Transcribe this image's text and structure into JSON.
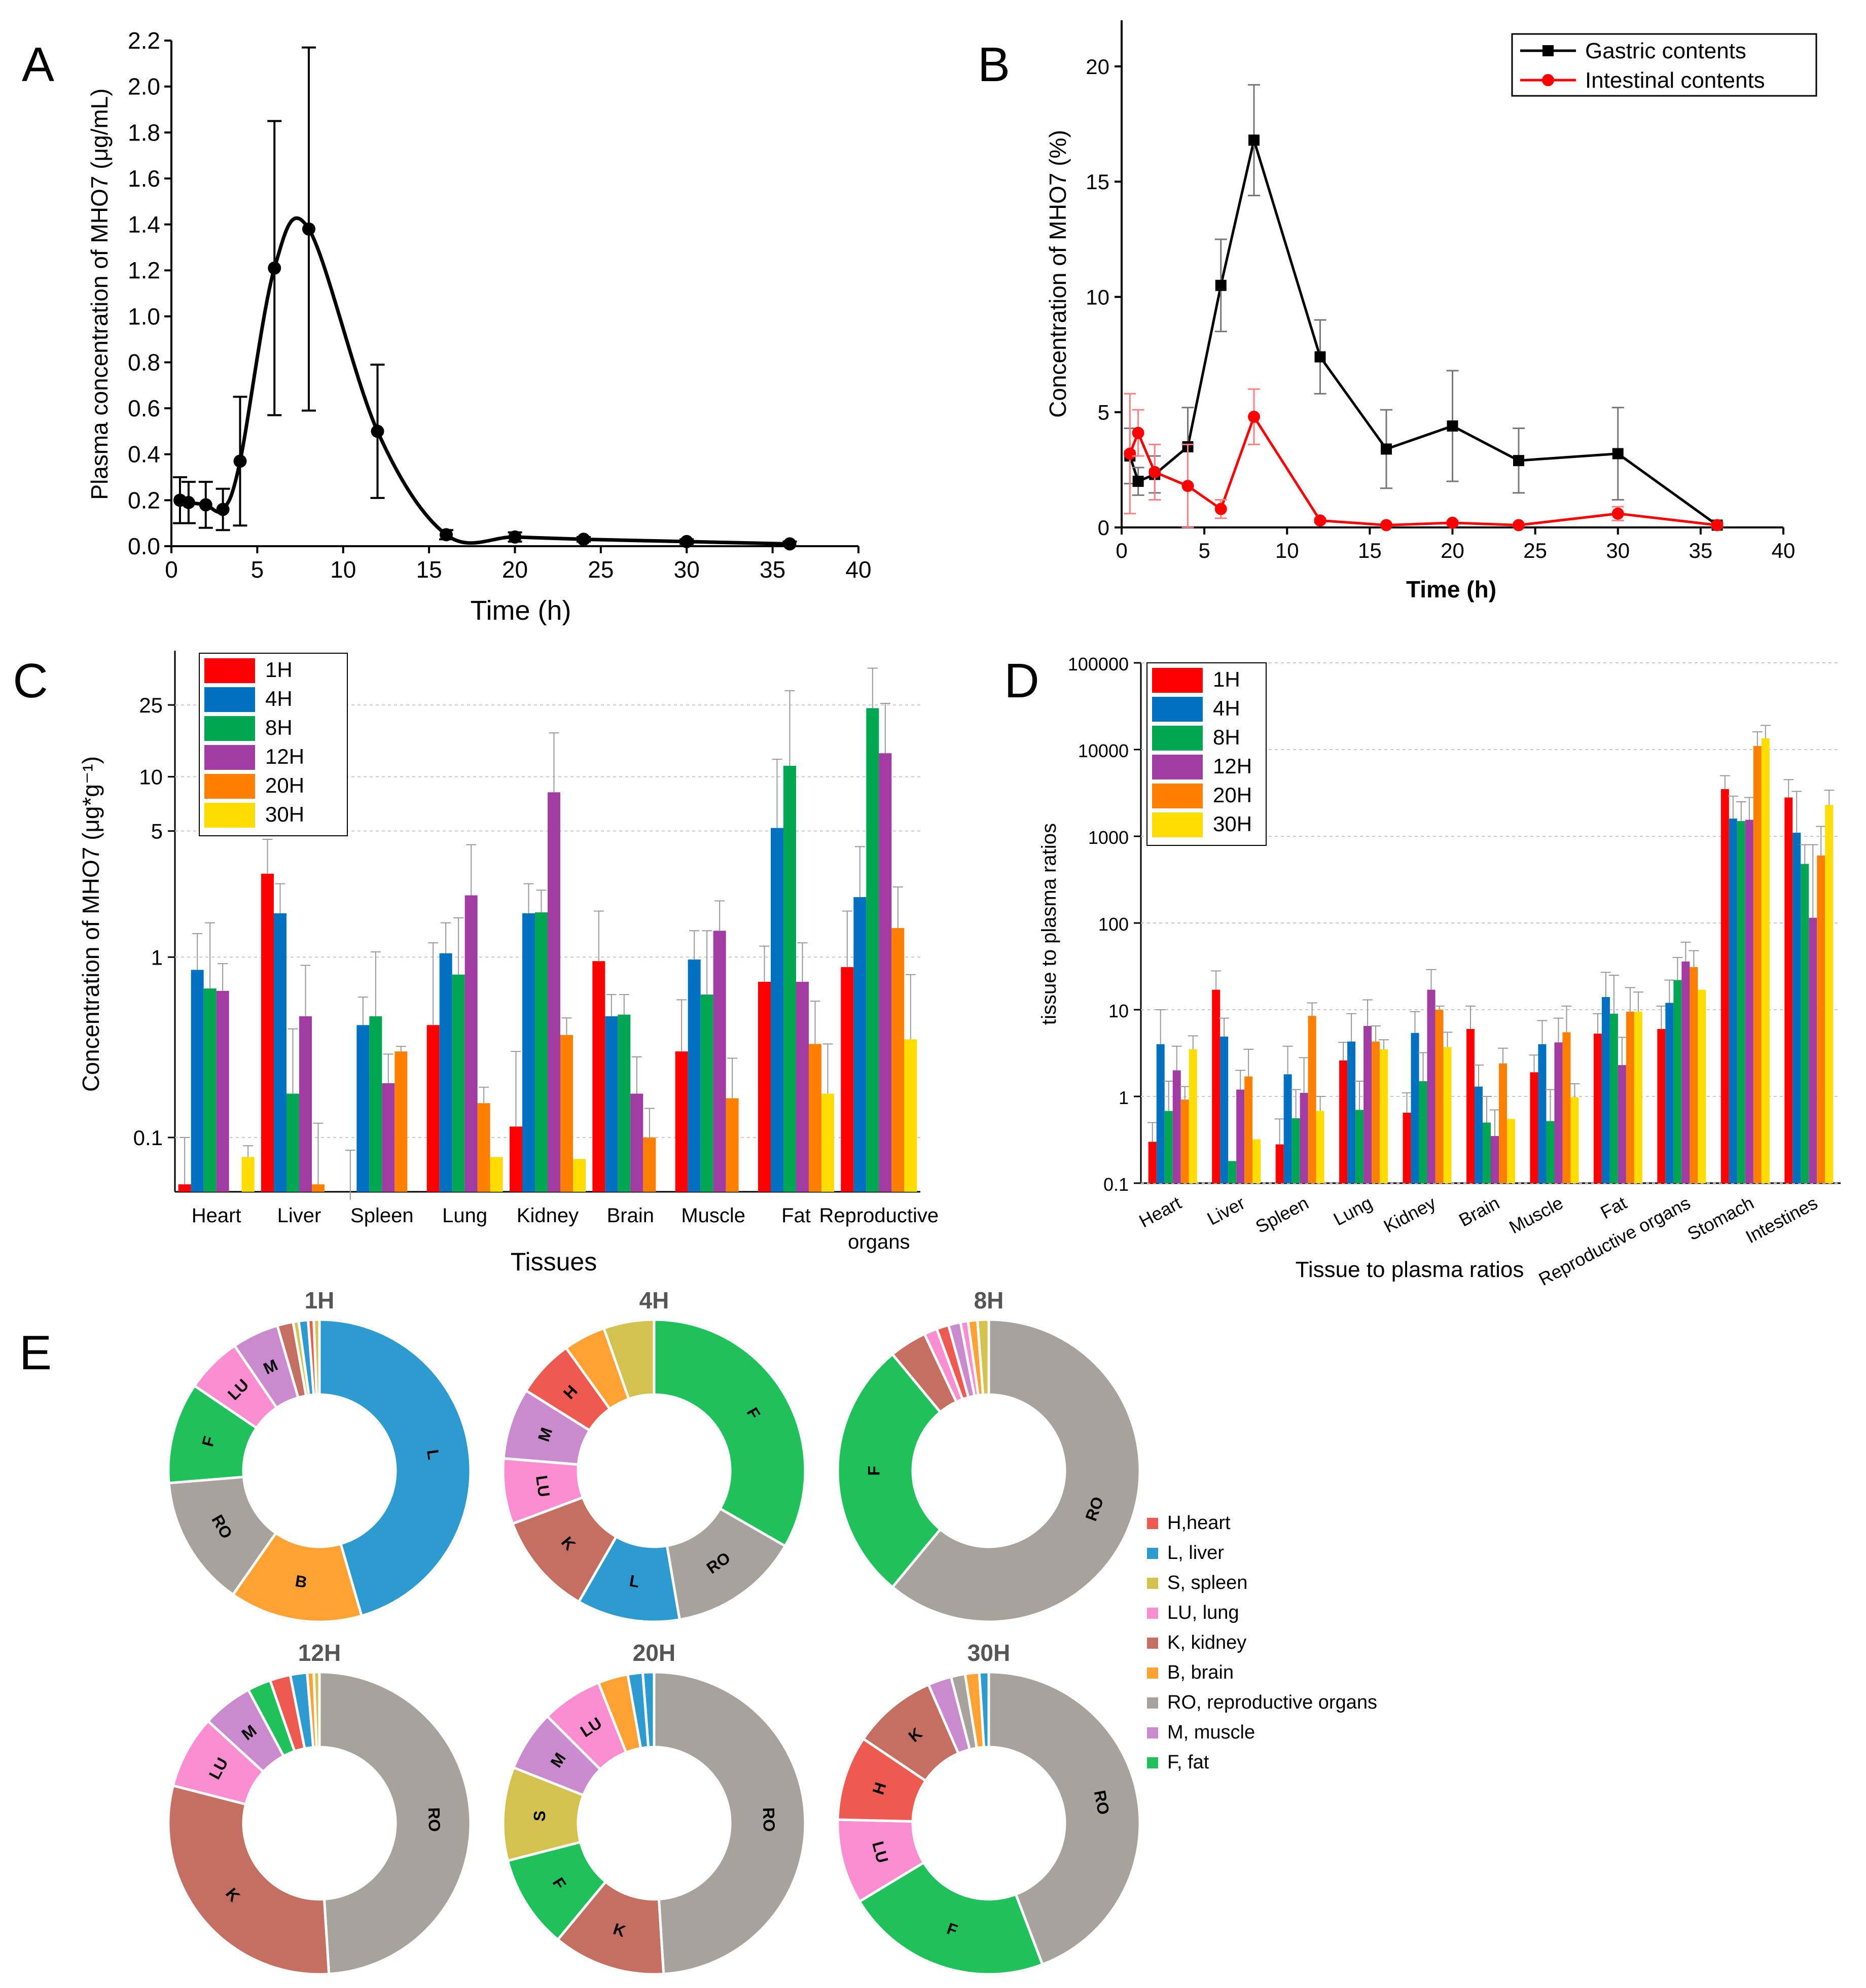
{
  "chart_data": [
    {
      "panel": "A",
      "type": "line",
      "xlabel": "Time (h)",
      "ylabel": "Plasma concentration of MHO7 (μg/mL)",
      "xlim": [
        0,
        40
      ],
      "ylim": [
        0,
        2.2
      ],
      "xticks": [
        0,
        5,
        10,
        15,
        20,
        25,
        30,
        35,
        40
      ],
      "yticks": [
        0.0,
        0.2,
        0.4,
        0.6,
        0.8,
        1.0,
        1.2,
        1.4,
        1.6,
        1.8,
        2.0,
        2.2
      ],
      "ytick_labels": [
        "0.0",
        "0.2",
        "0.4",
        "0.6",
        "0.8",
        "1.0",
        "1.2",
        "1.4",
        "1.6",
        "1.8",
        "2.0",
        "2.2"
      ],
      "series": [
        {
          "name": "Plasma",
          "color": "#000000",
          "x": [
            0.5,
            1,
            2,
            3,
            4,
            6,
            8,
            12,
            16,
            20,
            24,
            30,
            36
          ],
          "y": [
            0.2,
            0.19,
            0.18,
            0.16,
            0.37,
            1.21,
            1.38,
            0.5,
            0.05,
            0.04,
            0.03,
            0.02,
            0.01
          ],
          "err": [
            0.1,
            0.09,
            0.1,
            0.09,
            0.28,
            0.64,
            0.79,
            0.29,
            0.02,
            0.02,
            0.01,
            0.01,
            0.01
          ]
        }
      ]
    },
    {
      "panel": "B",
      "type": "line",
      "xlabel": "Time (h)",
      "ylabel": "Concentration of MHO7 (%)",
      "xlim": [
        0,
        40
      ],
      "ylim": [
        0,
        22
      ],
      "xticks": [
        0,
        5,
        10,
        15,
        20,
        25,
        30,
        35,
        40
      ],
      "yticks": [
        0,
        5,
        10,
        15,
        20
      ],
      "legend": "top-right",
      "series": [
        {
          "name": "Gastric contents",
          "color": "#000000",
          "marker": "square",
          "x": [
            0.5,
            1,
            2,
            4,
            6,
            8,
            12,
            16,
            20,
            24,
            30,
            36
          ],
          "y": [
            3.1,
            2.0,
            2.3,
            3.5,
            10.5,
            16.8,
            7.4,
            3.4,
            4.4,
            2.9,
            3.2,
            0.1
          ],
          "err": [
            1.2,
            0.6,
            0.8,
            1.7,
            2.0,
            2.4,
            1.6,
            1.7,
            2.4,
            1.4,
            2.0,
            0.1
          ]
        },
        {
          "name": "Intestinal contents",
          "color": "#ff0000",
          "marker": "circle",
          "x": [
            0.5,
            1,
            2,
            4,
            6,
            8,
            12,
            16,
            20,
            24,
            30,
            36
          ],
          "y": [
            3.2,
            4.1,
            2.4,
            1.8,
            0.8,
            4.8,
            0.3,
            0.1,
            0.2,
            0.1,
            0.6,
            0.1
          ],
          "err": [
            2.6,
            1.0,
            1.2,
            1.8,
            0.4,
            1.2,
            0.1,
            0.05,
            0.1,
            0.05,
            0.3,
            0.05
          ]
        }
      ]
    },
    {
      "panel": "C",
      "type": "bar",
      "scale": "log",
      "xlabel": "Tissues",
      "ylabel": "Concentration of MHO7 (μg*g⁻¹)",
      "ylim": [
        0.05,
        50
      ],
      "yticks": [
        0.1,
        1,
        5,
        10,
        25
      ],
      "ytick_labels": [
        "0.1",
        "1",
        "5",
        "10",
        "25"
      ],
      "categories": [
        "Heart",
        "Liver",
        "Spleen",
        "Lung",
        "Kidney",
        "Brain",
        "Muscle",
        "Fat",
        "Reproductive organs"
      ],
      "series": [
        {
          "name": "1H",
          "color": "#ff0000",
          "values": [
            0.055,
            2.9,
            0.045,
            0.42,
            0.115,
            0.95,
            0.3,
            0.73,
            0.88
          ],
          "err": [
            0.1,
            4.5,
            0.085,
            1.2,
            0.3,
            1.8,
            0.58,
            1.15,
            1.8
          ]
        },
        {
          "name": "4H",
          "color": "#0070c0",
          "values": [
            0.85,
            1.75,
            0.42,
            1.05,
            1.75,
            0.47,
            0.97,
            5.2,
            2.15
          ],
          "err": [
            1.35,
            2.55,
            0.6,
            1.55,
            2.55,
            0.62,
            1.4,
            12.5,
            4.1
          ]
        },
        {
          "name": "8H",
          "color": "#00a651",
          "values": [
            0.67,
            0.175,
            0.47,
            0.8,
            1.77,
            0.48,
            0.62,
            11.5,
            24.0
          ],
          "err": [
            1.55,
            0.4,
            1.07,
            1.65,
            2.35,
            0.62,
            1.4,
            30.0,
            40.0
          ]
        },
        {
          "name": "12H",
          "color": "#a23ca3",
          "values": [
            0.65,
            0.47,
            0.2,
            2.2,
            8.2,
            0.175,
            1.4,
            0.73,
            13.5
          ],
          "err": [
            0.92,
            0.9,
            0.29,
            4.2,
            17.5,
            0.28,
            2.05,
            1.2,
            25.5
          ]
        },
        {
          "name": "20H",
          "color": "#ff7f00",
          "values": [
            0.0,
            0.055,
            0.3,
            0.155,
            0.37,
            0.1,
            0.165,
            0.33,
            1.45
          ],
          "err": [
            0.0,
            0.12,
            0.32,
            0.19,
            0.46,
            0.145,
            0.275,
            0.57,
            2.45
          ]
        },
        {
          "name": "30H",
          "color": "#ffdd00",
          "values": [
            0.078,
            0.0,
            0.0,
            0.078,
            0.076,
            0.0,
            0.0,
            0.175,
            0.35
          ],
          "err": [
            0.09,
            0.0,
            0.0,
            0.0,
            0.0,
            0.0,
            0.0,
            0.33,
            0.8
          ]
        }
      ]
    },
    {
      "panel": "D",
      "type": "bar",
      "scale": "log",
      "xlabel": "Tissue to plasma ratios",
      "ylabel": "tissue to plasma ratios",
      "ylim": [
        0.1,
        100000
      ],
      "yticks": [
        0.1,
        1,
        10,
        100,
        1000,
        10000,
        100000
      ],
      "ytick_labels": [
        "0.1",
        "1",
        "10",
        "100",
        "1000",
        "10000",
        "100000"
      ],
      "categories": [
        "Heart",
        "Liver",
        "Spleen",
        "Lung",
        "Kidney",
        "Brain",
        "Muscle",
        "Fat",
        "Reproductive organs",
        "Stomach",
        "Intestines"
      ],
      "series": [
        {
          "name": "1H",
          "color": "#ff0000",
          "values": [
            0.3,
            17,
            0.28,
            2.6,
            0.65,
            6.0,
            1.9,
            5.3,
            6.0,
            3500,
            2800
          ],
          "err": [
            0.5,
            28,
            0.55,
            4.2,
            1.1,
            11,
            3.0,
            9.0,
            11,
            5000,
            4500
          ]
        },
        {
          "name": "4H",
          "color": "#0070c0",
          "values": [
            4.0,
            4.9,
            1.8,
            4.3,
            5.4,
            1.3,
            4.0,
            14,
            12,
            1600,
            1100
          ],
          "err": [
            10,
            8.0,
            3.8,
            9.0,
            9.5,
            2.3,
            7.5,
            27,
            22,
            2900,
            3300
          ]
        },
        {
          "name": "8H",
          "color": "#00a651",
          "values": [
            0.68,
            0.18,
            0.56,
            0.7,
            1.5,
            0.5,
            0.52,
            9.0,
            22,
            1500,
            480
          ],
          "err": [
            1.5,
            0.0,
            1.2,
            1.5,
            3.2,
            1.0,
            1.2,
            25,
            40,
            2500,
            800
          ]
        },
        {
          "name": "12H",
          "color": "#a23ca3",
          "values": [
            2.0,
            1.2,
            1.1,
            6.5,
            17,
            0.35,
            4.2,
            2.3,
            36,
            1550,
            115
          ],
          "err": [
            3.8,
            2.0,
            2.8,
            13,
            29,
            0.7,
            8.0,
            4.8,
            60,
            2800,
            800
          ]
        },
        {
          "name": "20H",
          "color": "#ff7f00",
          "values": [
            0.92,
            1.7,
            8.5,
            4.3,
            10,
            2.4,
            5.5,
            9.5,
            31,
            11000,
            600
          ],
          "err": [
            1.3,
            3.5,
            12,
            6.5,
            11,
            3.6,
            11,
            18,
            48,
            16000,
            1300
          ]
        },
        {
          "name": "30H",
          "color": "#ffdd00",
          "values": [
            3.5,
            0.32,
            0.68,
            3.5,
            3.7,
            0.55,
            0.98,
            9.5,
            17,
            13500,
            2300
          ],
          "err": [
            5.0,
            0.0,
            1.0,
            4.5,
            5.5,
            0.0,
            1.4,
            16,
            0.0,
            19000,
            3400
          ]
        }
      ]
    },
    {
      "panel": "E",
      "type": "pie",
      "donut": true,
      "legend": [
        {
          "key": "H",
          "label": "H,heart",
          "color": "#ef5a50"
        },
        {
          "key": "L",
          "label": "L, liver",
          "color": "#2e9bd0"
        },
        {
          "key": "S",
          "label": "S, spleen",
          "color": "#d3c24f"
        },
        {
          "key": "LU",
          "label": "LU, lung",
          "color": "#fb8ed0"
        },
        {
          "key": "K",
          "label": "K, kidney",
          "color": "#c46f62"
        },
        {
          "key": "B",
          "label": "B, brain",
          "color": "#ffa133"
        },
        {
          "key": "RO",
          "label": "RO, reproductive organs",
          "color": "#a8a29d"
        },
        {
          "key": "M",
          "label": "M, muscle",
          "color": "#c98bcd"
        },
        {
          "key": "F",
          "label": "F, fat",
          "color": "#1ec15a"
        }
      ],
      "charts": [
        {
          "title": "1H",
          "slices": [
            {
              "key": "L",
              "value": 45.5,
              "label": "L"
            },
            {
              "key": "B",
              "value": 14.2,
              "label": "B"
            },
            {
              "key": "RO",
              "value": 14.0,
              "label": "RO"
            },
            {
              "key": "F",
              "value": 10.8,
              "label": "F"
            },
            {
              "key": "LU",
              "value": 6.0,
              "label": "LU"
            },
            {
              "key": "M",
              "value": 5.0,
              "label": "M"
            },
            {
              "key": "K",
              "value": 1.7,
              "label": ""
            },
            {
              "key": "S",
              "value": 0.6,
              "label": ""
            },
            {
              "key": "L",
              "value": 1.0,
              "label": ""
            },
            {
              "key": "H",
              "value": 0.6,
              "label": ""
            },
            {
              "key": "S",
              "value": 0.6,
              "label": ""
            }
          ]
        },
        {
          "title": "4H",
          "slices": [
            {
              "key": "F",
              "value": 33.3,
              "label": "F"
            },
            {
              "key": "RO",
              "value": 14.0,
              "label": "RO"
            },
            {
              "key": "L",
              "value": 11.0,
              "label": "L"
            },
            {
              "key": "K",
              "value": 11.0,
              "label": "K"
            },
            {
              "key": "LU",
              "value": 7.0,
              "label": "LU"
            },
            {
              "key": "M",
              "value": 7.6,
              "label": "M"
            },
            {
              "key": "H",
              "value": 6.2,
              "label": "H"
            },
            {
              "key": "B",
              "value": 4.5,
              "label": ""
            },
            {
              "key": "S",
              "value": 5.4,
              "label": ""
            }
          ]
        },
        {
          "title": "8H",
          "slices": [
            {
              "key": "RO",
              "value": 61.0,
              "label": "RO"
            },
            {
              "key": "F",
              "value": 28.0,
              "label": "F"
            },
            {
              "key": "K",
              "value": 4.0,
              "label": ""
            },
            {
              "key": "LU",
              "value": 1.4,
              "label": ""
            },
            {
              "key": "H",
              "value": 1.3,
              "label": ""
            },
            {
              "key": "M",
              "value": 1.3,
              "label": ""
            },
            {
              "key": "LU",
              "value": 0.8,
              "label": ""
            },
            {
              "key": "B",
              "value": 1.0,
              "label": ""
            },
            {
              "key": "S",
              "value": 1.2,
              "label": ""
            }
          ]
        },
        {
          "title": "12H",
          "slices": [
            {
              "key": "RO",
              "value": 49.0,
              "label": "RO"
            },
            {
              "key": "K",
              "value": 30.0,
              "label": "K"
            },
            {
              "key": "LU",
              "value": 7.8,
              "label": "LU"
            },
            {
              "key": "M",
              "value": 5.4,
              "label": "M"
            },
            {
              "key": "F",
              "value": 2.5,
              "label": ""
            },
            {
              "key": "H",
              "value": 2.2,
              "label": ""
            },
            {
              "key": "L",
              "value": 1.8,
              "label": ""
            },
            {
              "key": "B",
              "value": 0.7,
              "label": ""
            },
            {
              "key": "S",
              "value": 0.6,
              "label": ""
            }
          ]
        },
        {
          "title": "20H",
          "slices": [
            {
              "key": "RO",
              "value": 49.0,
              "label": "RO"
            },
            {
              "key": "K",
              "value": 12.0,
              "label": "K"
            },
            {
              "key": "F",
              "value": 10.0,
              "label": "F"
            },
            {
              "key": "S",
              "value": 10.0,
              "label": "S"
            },
            {
              "key": "M",
              "value": 6.5,
              "label": "M"
            },
            {
              "key": "LU",
              "value": 6.5,
              "label": "LU"
            },
            {
              "key": "B",
              "value": 3.2,
              "label": ""
            },
            {
              "key": "L",
              "value": 1.6,
              "label": ""
            },
            {
              "key": "L",
              "value": 1.2,
              "label": ""
            }
          ]
        },
        {
          "title": "30H",
          "slices": [
            {
              "key": "RO",
              "value": 44.0,
              "label": "RO"
            },
            {
              "key": "F",
              "value": 22.0,
              "label": "F"
            },
            {
              "key": "LU",
              "value": 9.0,
              "label": "LU"
            },
            {
              "key": "H",
              "value": 9.0,
              "label": "H"
            },
            {
              "key": "K",
              "value": 9.0,
              "label": "K"
            },
            {
              "key": "M",
              "value": 2.5,
              "label": ""
            },
            {
              "key": "RO",
              "value": 1.5,
              "label": ""
            },
            {
              "key": "B",
              "value": 1.5,
              "label": ""
            },
            {
              "key": "L",
              "value": 1.0,
              "label": ""
            }
          ]
        }
      ]
    }
  ],
  "panel_letters": [
    "A",
    "B",
    "C",
    "D",
    "E"
  ]
}
